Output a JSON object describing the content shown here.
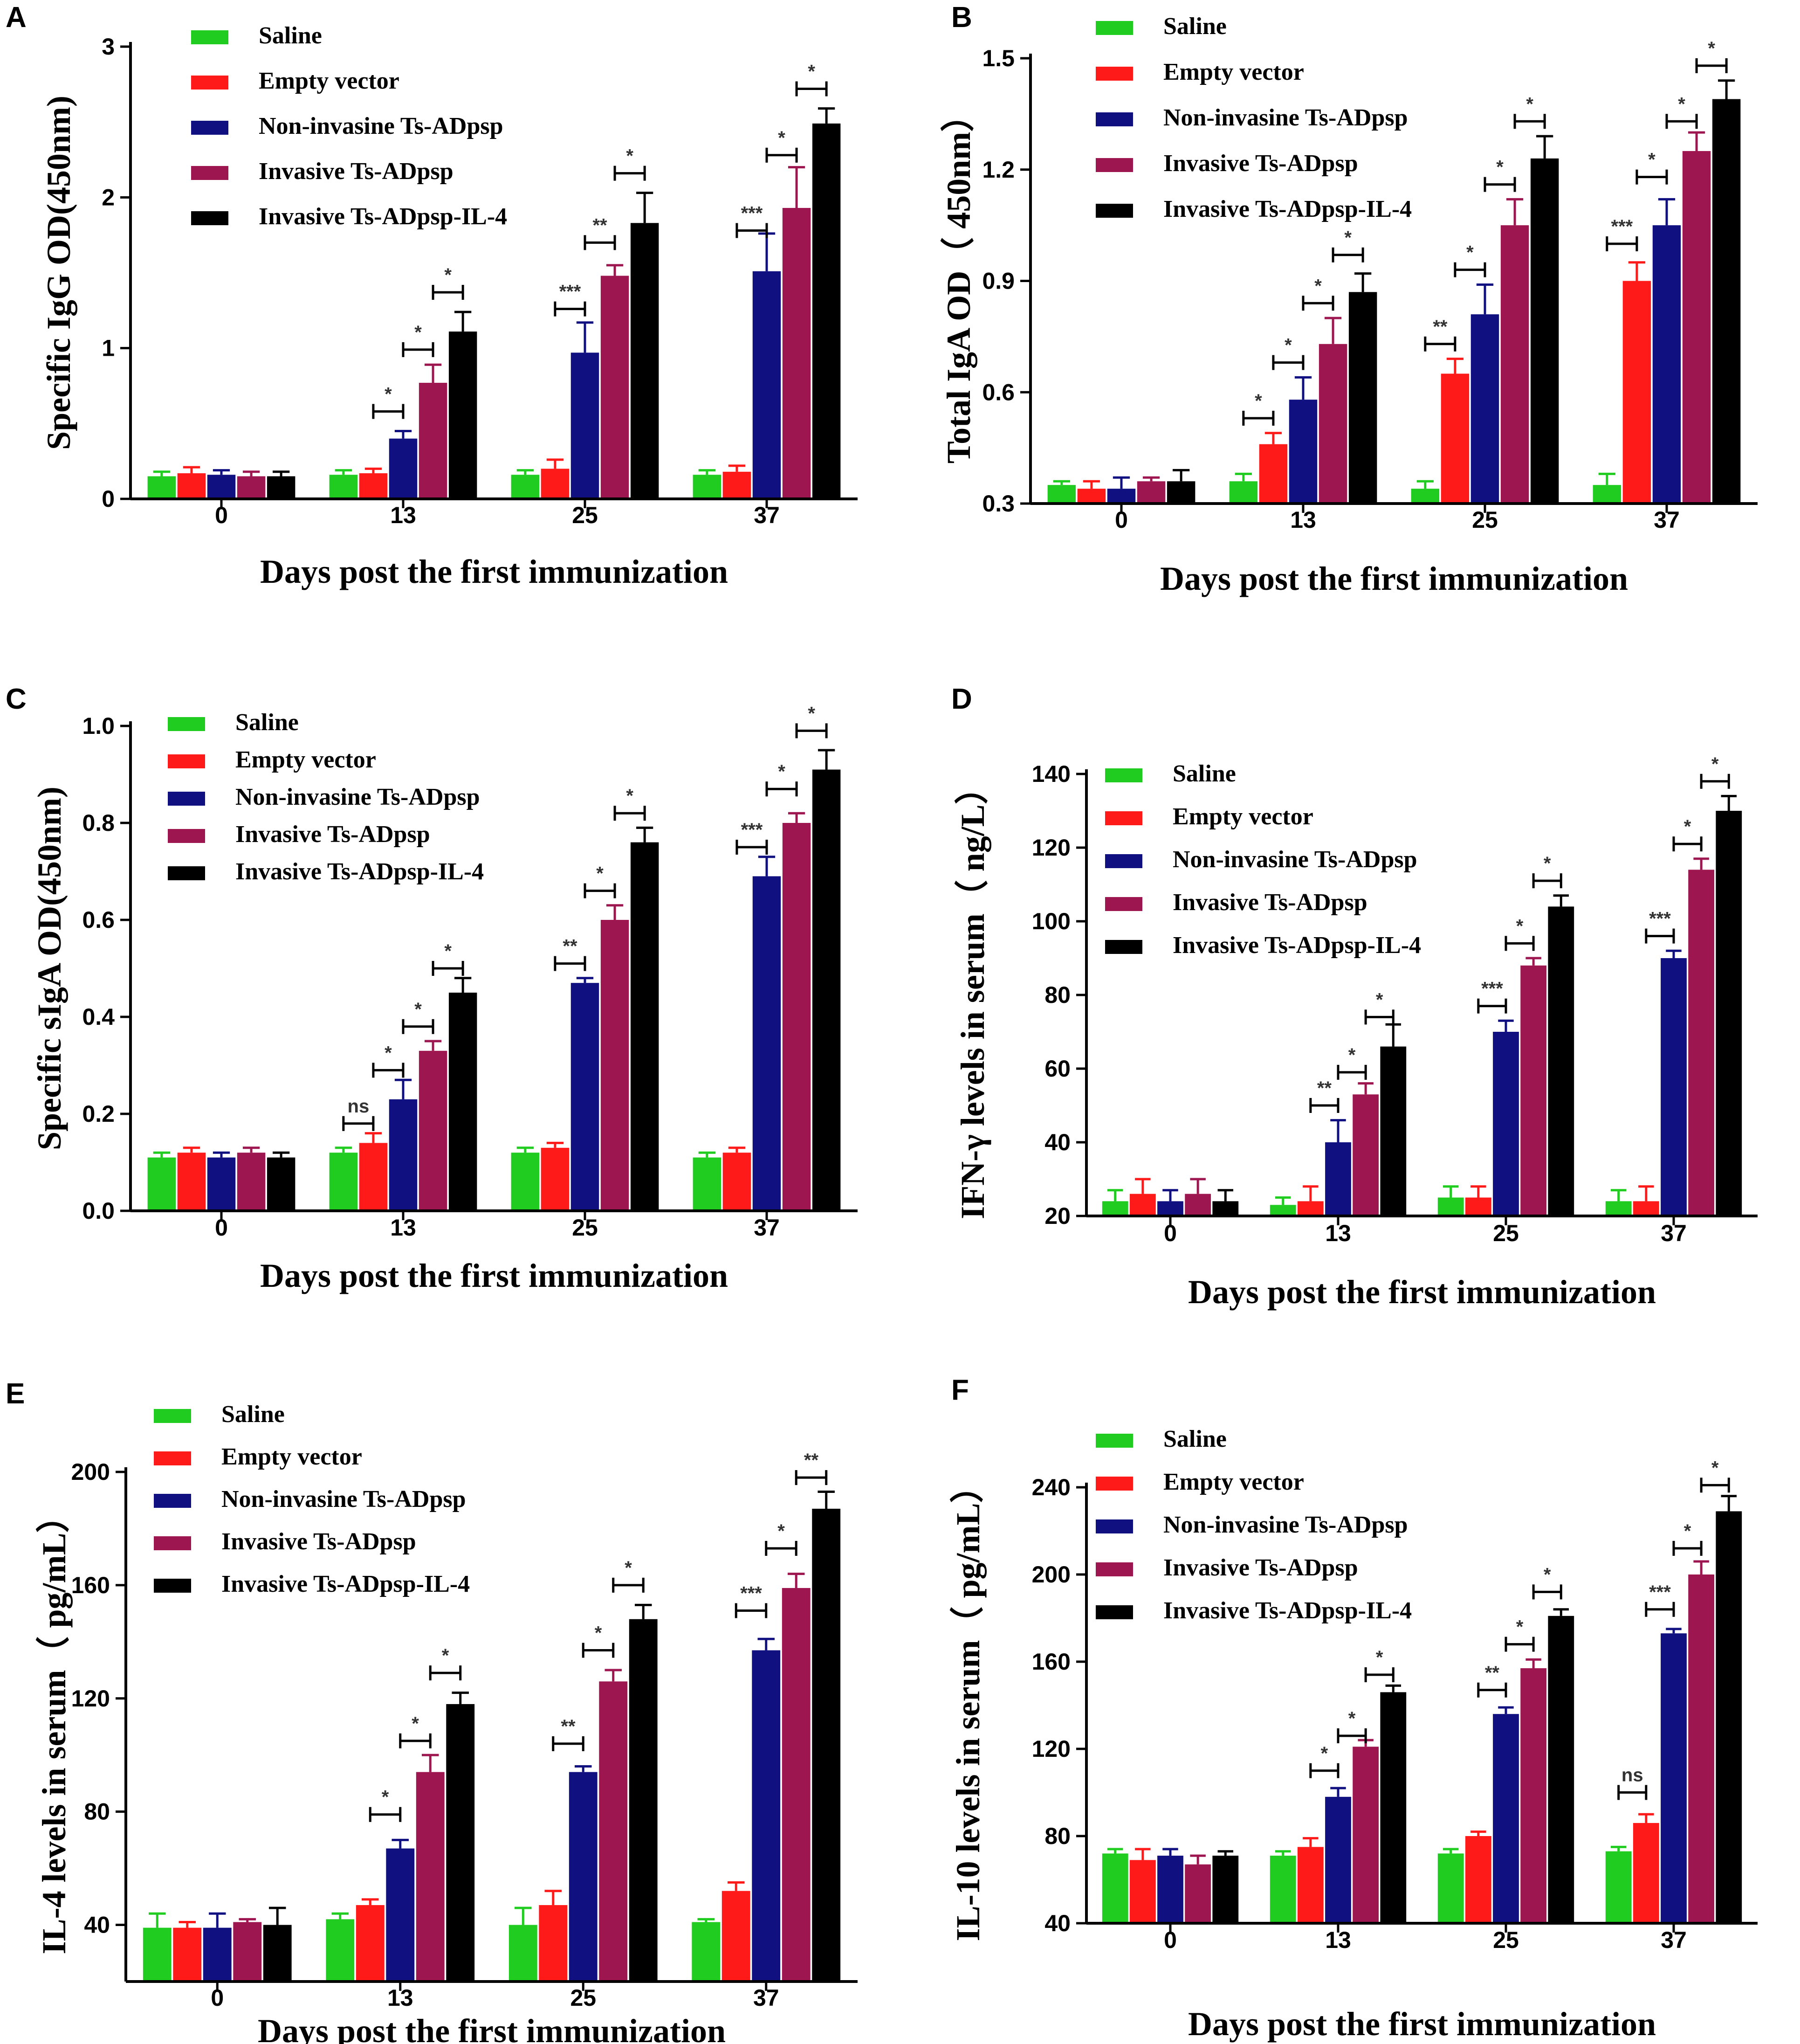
{
  "figure": {
    "colors": {
      "Saline": "#1fcc1f",
      "Empty vector": "#ff1a1a",
      "Non-invasine Ts-ADpsp": "#101080",
      "Invasive Ts-ADpsp": "#9e1650",
      "Invasive Ts-ADpsp-IL-4": "#000000"
    }
  },
  "chart_data": [
    {
      "panel": "A",
      "type": "bar",
      "ylabel": "Specific IgG OD(450nm)",
      "xlabel": "Days post the first immunization",
      "categories": [
        "0",
        "13",
        "25",
        "37"
      ],
      "ylim": [
        0,
        3
      ],
      "yticks": [
        "0",
        "1",
        "2",
        "3"
      ],
      "series": [
        {
          "name": "Saline",
          "values": [
            0.15,
            0.16,
            0.16,
            0.16
          ],
          "errors": [
            0.03,
            0.03,
            0.03,
            0.03
          ]
        },
        {
          "name": "Empty vector",
          "values": [
            0.17,
            0.17,
            0.2,
            0.18
          ],
          "errors": [
            0.04,
            0.03,
            0.06,
            0.04
          ]
        },
        {
          "name": "Non-invasine Ts-ADpsp",
          "values": [
            0.16,
            0.4,
            0.97,
            1.51
          ],
          "errors": [
            0.03,
            0.05,
            0.2,
            0.25
          ]
        },
        {
          "name": "Invasive Ts-ADpsp",
          "values": [
            0.15,
            0.77,
            1.48,
            1.93
          ],
          "errors": [
            0.03,
            0.12,
            0.07,
            0.27
          ]
        },
        {
          "name": "Invasive Ts-ADpsp-IL-4",
          "values": [
            0.15,
            1.11,
            1.83,
            2.49
          ],
          "errors": [
            0.03,
            0.13,
            0.2,
            0.1
          ]
        }
      ],
      "comparisons": [
        {
          "group": 1,
          "between": [
            2,
            3
          ],
          "label": "*",
          "y": 0.58
        },
        {
          "group": 1,
          "between": [
            3,
            4
          ],
          "label": "*",
          "y": 0.99
        },
        {
          "group": 1,
          "between": [
            4,
            5
          ],
          "label": "*",
          "y": 1.37
        },
        {
          "group": 2,
          "between": [
            2,
            3
          ],
          "label": "***",
          "y": 1.26
        },
        {
          "group": 2,
          "between": [
            3,
            4
          ],
          "label": "**",
          "y": 1.7
        },
        {
          "group": 2,
          "between": [
            4,
            5
          ],
          "label": "*",
          "y": 2.16
        },
        {
          "group": 3,
          "between": [
            2,
            3
          ],
          "label": "***",
          "y": 1.78
        },
        {
          "group": 3,
          "between": [
            3,
            4
          ],
          "label": "*",
          "y": 2.28
        },
        {
          "group": 3,
          "between": [
            4,
            5
          ],
          "label": "*",
          "y": 2.72
        }
      ]
    },
    {
      "panel": "B",
      "type": "bar",
      "ylabel": "Total IgA OD（ 450nm）",
      "xlabel": "Days post the first immunization",
      "categories": [
        "0",
        "13",
        "25",
        "37"
      ],
      "ylim": [
        0.3,
        1.5
      ],
      "yticks": [
        "0.3",
        "0.6",
        "0.9",
        "1.2",
        "1.5"
      ],
      "series": [
        {
          "name": "Saline",
          "values": [
            0.35,
            0.36,
            0.34,
            0.35
          ],
          "errors": [
            0.01,
            0.02,
            0.02,
            0.03
          ]
        },
        {
          "name": "Empty vector",
          "values": [
            0.34,
            0.46,
            0.65,
            0.9
          ],
          "errors": [
            0.02,
            0.03,
            0.04,
            0.05
          ]
        },
        {
          "name": "Non-invasine Ts-ADpsp",
          "values": [
            0.34,
            0.58,
            0.81,
            1.05
          ],
          "errors": [
            0.03,
            0.06,
            0.08,
            0.07
          ]
        },
        {
          "name": "Invasive Ts-ADpsp",
          "values": [
            0.36,
            0.73,
            1.05,
            1.25
          ],
          "errors": [
            0.01,
            0.07,
            0.07,
            0.05
          ]
        },
        {
          "name": "Invasive Ts-ADpsp-IL-4",
          "values": [
            0.36,
            0.87,
            1.23,
            1.39
          ],
          "errors": [
            0.03,
            0.05,
            0.06,
            0.05
          ]
        }
      ],
      "comparisons": [
        {
          "group": 1,
          "between": [
            1,
            2
          ],
          "label": "*",
          "y": 0.53
        },
        {
          "group": 1,
          "between": [
            2,
            3
          ],
          "label": "*",
          "y": 0.68
        },
        {
          "group": 1,
          "between": [
            3,
            4
          ],
          "label": "*",
          "y": 0.84
        },
        {
          "group": 1,
          "between": [
            4,
            5
          ],
          "label": "*",
          "y": 0.97
        },
        {
          "group": 2,
          "between": [
            1,
            2
          ],
          "label": "**",
          "y": 0.73
        },
        {
          "group": 2,
          "between": [
            2,
            3
          ],
          "label": "*",
          "y": 0.93
        },
        {
          "group": 2,
          "between": [
            3,
            4
          ],
          "label": "*",
          "y": 1.16
        },
        {
          "group": 2,
          "between": [
            4,
            5
          ],
          "label": "*",
          "y": 1.33
        },
        {
          "group": 3,
          "between": [
            1,
            2
          ],
          "label": "***",
          "y": 1.0
        },
        {
          "group": 3,
          "between": [
            2,
            3
          ],
          "label": "*",
          "y": 1.18
        },
        {
          "group": 3,
          "between": [
            3,
            4
          ],
          "label": "*",
          "y": 1.33
        },
        {
          "group": 3,
          "between": [
            4,
            5
          ],
          "label": "*",
          "y": 1.48
        }
      ]
    },
    {
      "panel": "C",
      "type": "bar",
      "ylabel": "Specific sIgA OD(450nm)",
      "xlabel": "Days post the first immunization",
      "categories": [
        "0",
        "13",
        "25",
        "37"
      ],
      "ylim": [
        0,
        1.0
      ],
      "yticks": [
        "0.0",
        "0.2",
        "0.4",
        "0.6",
        "0.8",
        "1.0"
      ],
      "series": [
        {
          "name": "Saline",
          "values": [
            0.11,
            0.12,
            0.12,
            0.11
          ],
          "errors": [
            0.01,
            0.01,
            0.01,
            0.01
          ]
        },
        {
          "name": "Empty vector",
          "values": [
            0.12,
            0.14,
            0.13,
            0.12
          ],
          "errors": [
            0.01,
            0.02,
            0.01,
            0.01
          ]
        },
        {
          "name": "Non-invasine Ts-ADpsp",
          "values": [
            0.11,
            0.23,
            0.47,
            0.69
          ],
          "errors": [
            0.01,
            0.04,
            0.01,
            0.04
          ]
        },
        {
          "name": "Invasive Ts-ADpsp",
          "values": [
            0.12,
            0.33,
            0.6,
            0.8
          ],
          "errors": [
            0.01,
            0.02,
            0.03,
            0.02
          ]
        },
        {
          "name": "Invasive Ts-ADpsp-IL-4",
          "values": [
            0.11,
            0.45,
            0.76,
            0.91
          ],
          "errors": [
            0.01,
            0.03,
            0.03,
            0.04
          ]
        }
      ],
      "comparisons": [
        {
          "group": 1,
          "between": [
            1,
            2
          ],
          "label": "ns",
          "y": 0.18
        },
        {
          "group": 1,
          "between": [
            2,
            3
          ],
          "label": "*",
          "y": 0.29
        },
        {
          "group": 1,
          "between": [
            3,
            4
          ],
          "label": "*",
          "y": 0.38
        },
        {
          "group": 1,
          "between": [
            4,
            5
          ],
          "label": "*",
          "y": 0.5
        },
        {
          "group": 2,
          "between": [
            2,
            3
          ],
          "label": "**",
          "y": 0.51
        },
        {
          "group": 2,
          "between": [
            3,
            4
          ],
          "label": "*",
          "y": 0.66
        },
        {
          "group": 2,
          "between": [
            4,
            5
          ],
          "label": "*",
          "y": 0.82
        },
        {
          "group": 3,
          "between": [
            2,
            3
          ],
          "label": "***",
          "y": 0.75
        },
        {
          "group": 3,
          "between": [
            3,
            4
          ],
          "label": "*",
          "y": 0.87
        },
        {
          "group": 3,
          "between": [
            4,
            5
          ],
          "label": "*",
          "y": 0.99
        }
      ]
    },
    {
      "panel": "D",
      "type": "bar",
      "ylabel": "IFN-γ levels in serum（ ng/L）",
      "xlabel": "Days post the first immunization",
      "categories": [
        "0",
        "13",
        "25",
        "37"
      ],
      "ylim": [
        20,
        140
      ],
      "yticks": [
        "20",
        "40",
        "60",
        "80",
        "100",
        "120",
        "140"
      ],
      "series": [
        {
          "name": "Saline",
          "values": [
            24,
            23,
            25,
            24
          ],
          "errors": [
            3,
            2,
            3,
            3
          ]
        },
        {
          "name": "Empty vector",
          "values": [
            26,
            24,
            25,
            24
          ],
          "errors": [
            4,
            4,
            3,
            4
          ]
        },
        {
          "name": "Non-invasine Ts-ADpsp",
          "values": [
            24,
            40,
            70,
            90
          ],
          "errors": [
            3,
            6,
            3,
            2
          ]
        },
        {
          "name": "Invasive Ts-ADpsp",
          "values": [
            26,
            53,
            88,
            114
          ],
          "errors": [
            4,
            3,
            2,
            3
          ]
        },
        {
          "name": "Invasive Ts-ADpsp-IL-4",
          "values": [
            24,
            66,
            104,
            130
          ],
          "errors": [
            3,
            6,
            3,
            4
          ]
        }
      ],
      "comparisons": [
        {
          "group": 1,
          "between": [
            2,
            3
          ],
          "label": "**",
          "y": 50
        },
        {
          "group": 1,
          "between": [
            3,
            4
          ],
          "label": "*",
          "y": 59
        },
        {
          "group": 1,
          "between": [
            4,
            5
          ],
          "label": "*",
          "y": 74
        },
        {
          "group": 2,
          "between": [
            2,
            3
          ],
          "label": "***",
          "y": 77
        },
        {
          "group": 2,
          "between": [
            3,
            4
          ],
          "label": "*",
          "y": 94
        },
        {
          "group": 2,
          "between": [
            4,
            5
          ],
          "label": "*",
          "y": 111
        },
        {
          "group": 3,
          "between": [
            2,
            3
          ],
          "label": "***",
          "y": 96
        },
        {
          "group": 3,
          "between": [
            3,
            4
          ],
          "label": "*",
          "y": 121
        },
        {
          "group": 3,
          "between": [
            4,
            5
          ],
          "label": "*",
          "y": 138
        }
      ]
    },
    {
      "panel": "E",
      "type": "bar",
      "ylabel": "IL-4 levels in serum（ pg/mL）",
      "xlabel": "Days post the first immunization",
      "categories": [
        "0",
        "13",
        "25",
        "37"
      ],
      "ylim": [
        20,
        200
      ],
      "yticks": [
        "40",
        "80",
        "120",
        "160",
        "200"
      ],
      "series": [
        {
          "name": "Saline",
          "values": [
            39,
            42,
            40,
            41
          ],
          "errors": [
            5,
            2,
            6,
            1
          ]
        },
        {
          "name": "Empty vector",
          "values": [
            39,
            47,
            47,
            52
          ],
          "errors": [
            2,
            2,
            5,
            3
          ]
        },
        {
          "name": "Non-invasine Ts-ADpsp",
          "values": [
            39,
            67,
            94,
            137
          ],
          "errors": [
            5,
            3,
            2,
            4
          ]
        },
        {
          "name": "Invasive Ts-ADpsp",
          "values": [
            41,
            94,
            126,
            159
          ],
          "errors": [
            1,
            6,
            4,
            5
          ]
        },
        {
          "name": "Invasive Ts-ADpsp-IL-4",
          "values": [
            40,
            118,
            148,
            187
          ],
          "errors": [
            6,
            4,
            5,
            6
          ]
        }
      ],
      "comparisons": [
        {
          "group": 1,
          "between": [
            2,
            3
          ],
          "label": "*",
          "y": 79
        },
        {
          "group": 1,
          "between": [
            3,
            4
          ],
          "label": "*",
          "y": 105
        },
        {
          "group": 1,
          "between": [
            4,
            5
          ],
          "label": "*",
          "y": 129
        },
        {
          "group": 2,
          "between": [
            2,
            3
          ],
          "label": "**",
          "y": 104
        },
        {
          "group": 2,
          "between": [
            3,
            4
          ],
          "label": "*",
          "y": 137
        },
        {
          "group": 2,
          "between": [
            4,
            5
          ],
          "label": "*",
          "y": 160
        },
        {
          "group": 3,
          "between": [
            2,
            3
          ],
          "label": "***",
          "y": 151
        },
        {
          "group": 3,
          "between": [
            3,
            4
          ],
          "label": "*",
          "y": 173
        },
        {
          "group": 3,
          "between": [
            4,
            5
          ],
          "label": "**",
          "y": 198
        }
      ]
    },
    {
      "panel": "F",
      "type": "bar",
      "ylabel": "IL-10 levels in serum（ pg/mL）",
      "xlabel": "Days post the first immunization",
      "categories": [
        "0",
        "13",
        "25",
        "37"
      ],
      "ylim": [
        40,
        240
      ],
      "yticks": [
        "40",
        "80",
        "120",
        "160",
        "200",
        "240"
      ],
      "series": [
        {
          "name": "Saline",
          "values": [
            72,
            71,
            72,
            73
          ],
          "errors": [
            2,
            2,
            2,
            2
          ]
        },
        {
          "name": "Empty vector",
          "values": [
            69,
            75,
            80,
            86
          ],
          "errors": [
            5,
            4,
            2,
            4
          ]
        },
        {
          "name": "Non-invasine Ts-ADpsp",
          "values": [
            71,
            98,
            136,
            173
          ],
          "errors": [
            3,
            4,
            3,
            2
          ]
        },
        {
          "name": "Invasive Ts-ADpsp",
          "values": [
            67,
            121,
            157,
            200
          ],
          "errors": [
            4,
            3,
            4,
            6
          ]
        },
        {
          "name": "Invasive Ts-ADpsp-IL-4",
          "values": [
            71,
            146,
            181,
            229
          ],
          "errors": [
            2,
            3,
            3,
            7
          ]
        }
      ],
      "comparisons": [
        {
          "group": 1,
          "between": [
            2,
            3
          ],
          "label": "*",
          "y": 110
        },
        {
          "group": 1,
          "between": [
            3,
            4
          ],
          "label": "*",
          "y": 126
        },
        {
          "group": 1,
          "between": [
            4,
            5
          ],
          "label": "*",
          "y": 154
        },
        {
          "group": 2,
          "between": [
            2,
            3
          ],
          "label": "**",
          "y": 147
        },
        {
          "group": 2,
          "between": [
            3,
            4
          ],
          "label": "*",
          "y": 168
        },
        {
          "group": 2,
          "between": [
            4,
            5
          ],
          "label": "*",
          "y": 192
        },
        {
          "group": 3,
          "between": [
            1,
            2
          ],
          "label": "ns",
          "y": 100
        },
        {
          "group": 3,
          "between": [
            2,
            3
          ],
          "label": "***",
          "y": 184
        },
        {
          "group": 3,
          "between": [
            3,
            4
          ],
          "label": "*",
          "y": 212
        },
        {
          "group": 3,
          "between": [
            4,
            5
          ],
          "label": "*",
          "y": 241
        }
      ]
    }
  ]
}
